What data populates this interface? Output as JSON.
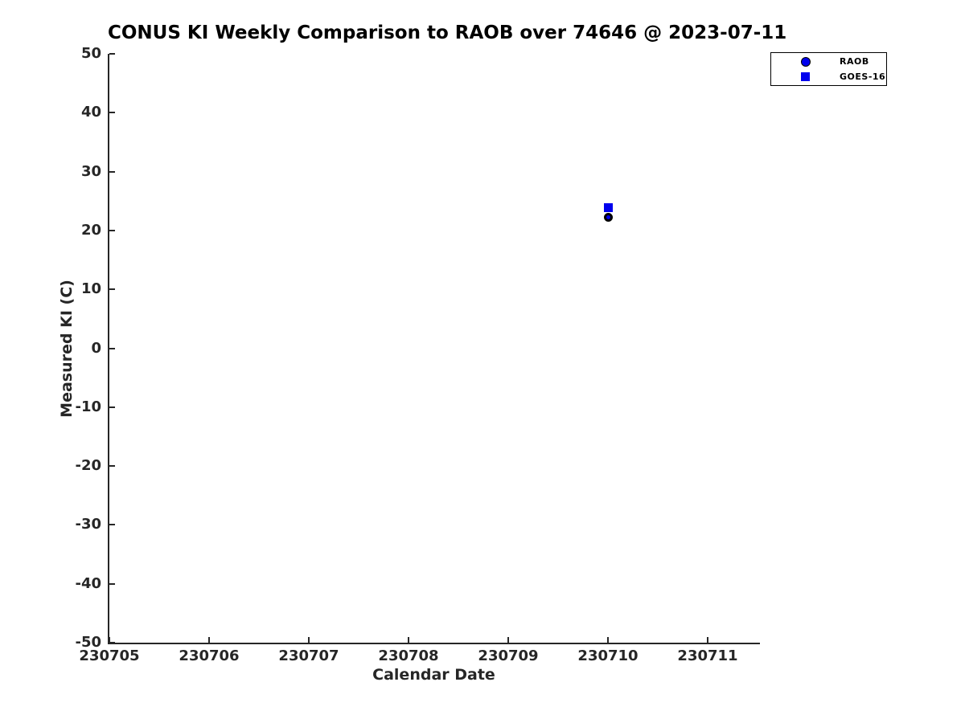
{
  "figure": {
    "title": "CONUS KI Weekly Comparison to RAOB over 74646 @ 2023-07-11"
  },
  "chart_data": {
    "type": "scatter",
    "title": "CONUS KI Weekly Comparison to RAOB over 74646 @ 2023-07-11",
    "xlabel": "Calendar Date",
    "ylabel": "Measured KI (C)",
    "x_tick_labels": [
      "230705",
      "230706",
      "230707",
      "230708",
      "230709",
      "230710",
      "230711"
    ],
    "x_tick_values": [
      230705,
      230706,
      230707,
      230708,
      230709,
      230710,
      230711
    ],
    "xlim": [
      230705,
      230711.5
    ],
    "y_tick_values": [
      50,
      40,
      30,
      20,
      10,
      0,
      -10,
      -20,
      -30,
      -40,
      -50
    ],
    "ylim": [
      -50,
      50
    ],
    "grid": false,
    "legend": {
      "position": "top-right",
      "entries": [
        "RAOB",
        "GOES-16"
      ]
    },
    "series": [
      {
        "name": "RAOB",
        "marker": "circle",
        "face_color": "#0000ee",
        "edge_color": "#000000",
        "points": [
          {
            "x": 230710,
            "y": 22.3
          }
        ]
      },
      {
        "name": "GOES-16",
        "marker": "square",
        "face_color": "#0000ee",
        "edge_color": "#0000ee",
        "points": [
          {
            "x": 230710,
            "y": 23.9
          }
        ]
      }
    ],
    "colors": {
      "marker_blue": "#0000ee",
      "axis": "#262626",
      "title": "#000000"
    }
  }
}
